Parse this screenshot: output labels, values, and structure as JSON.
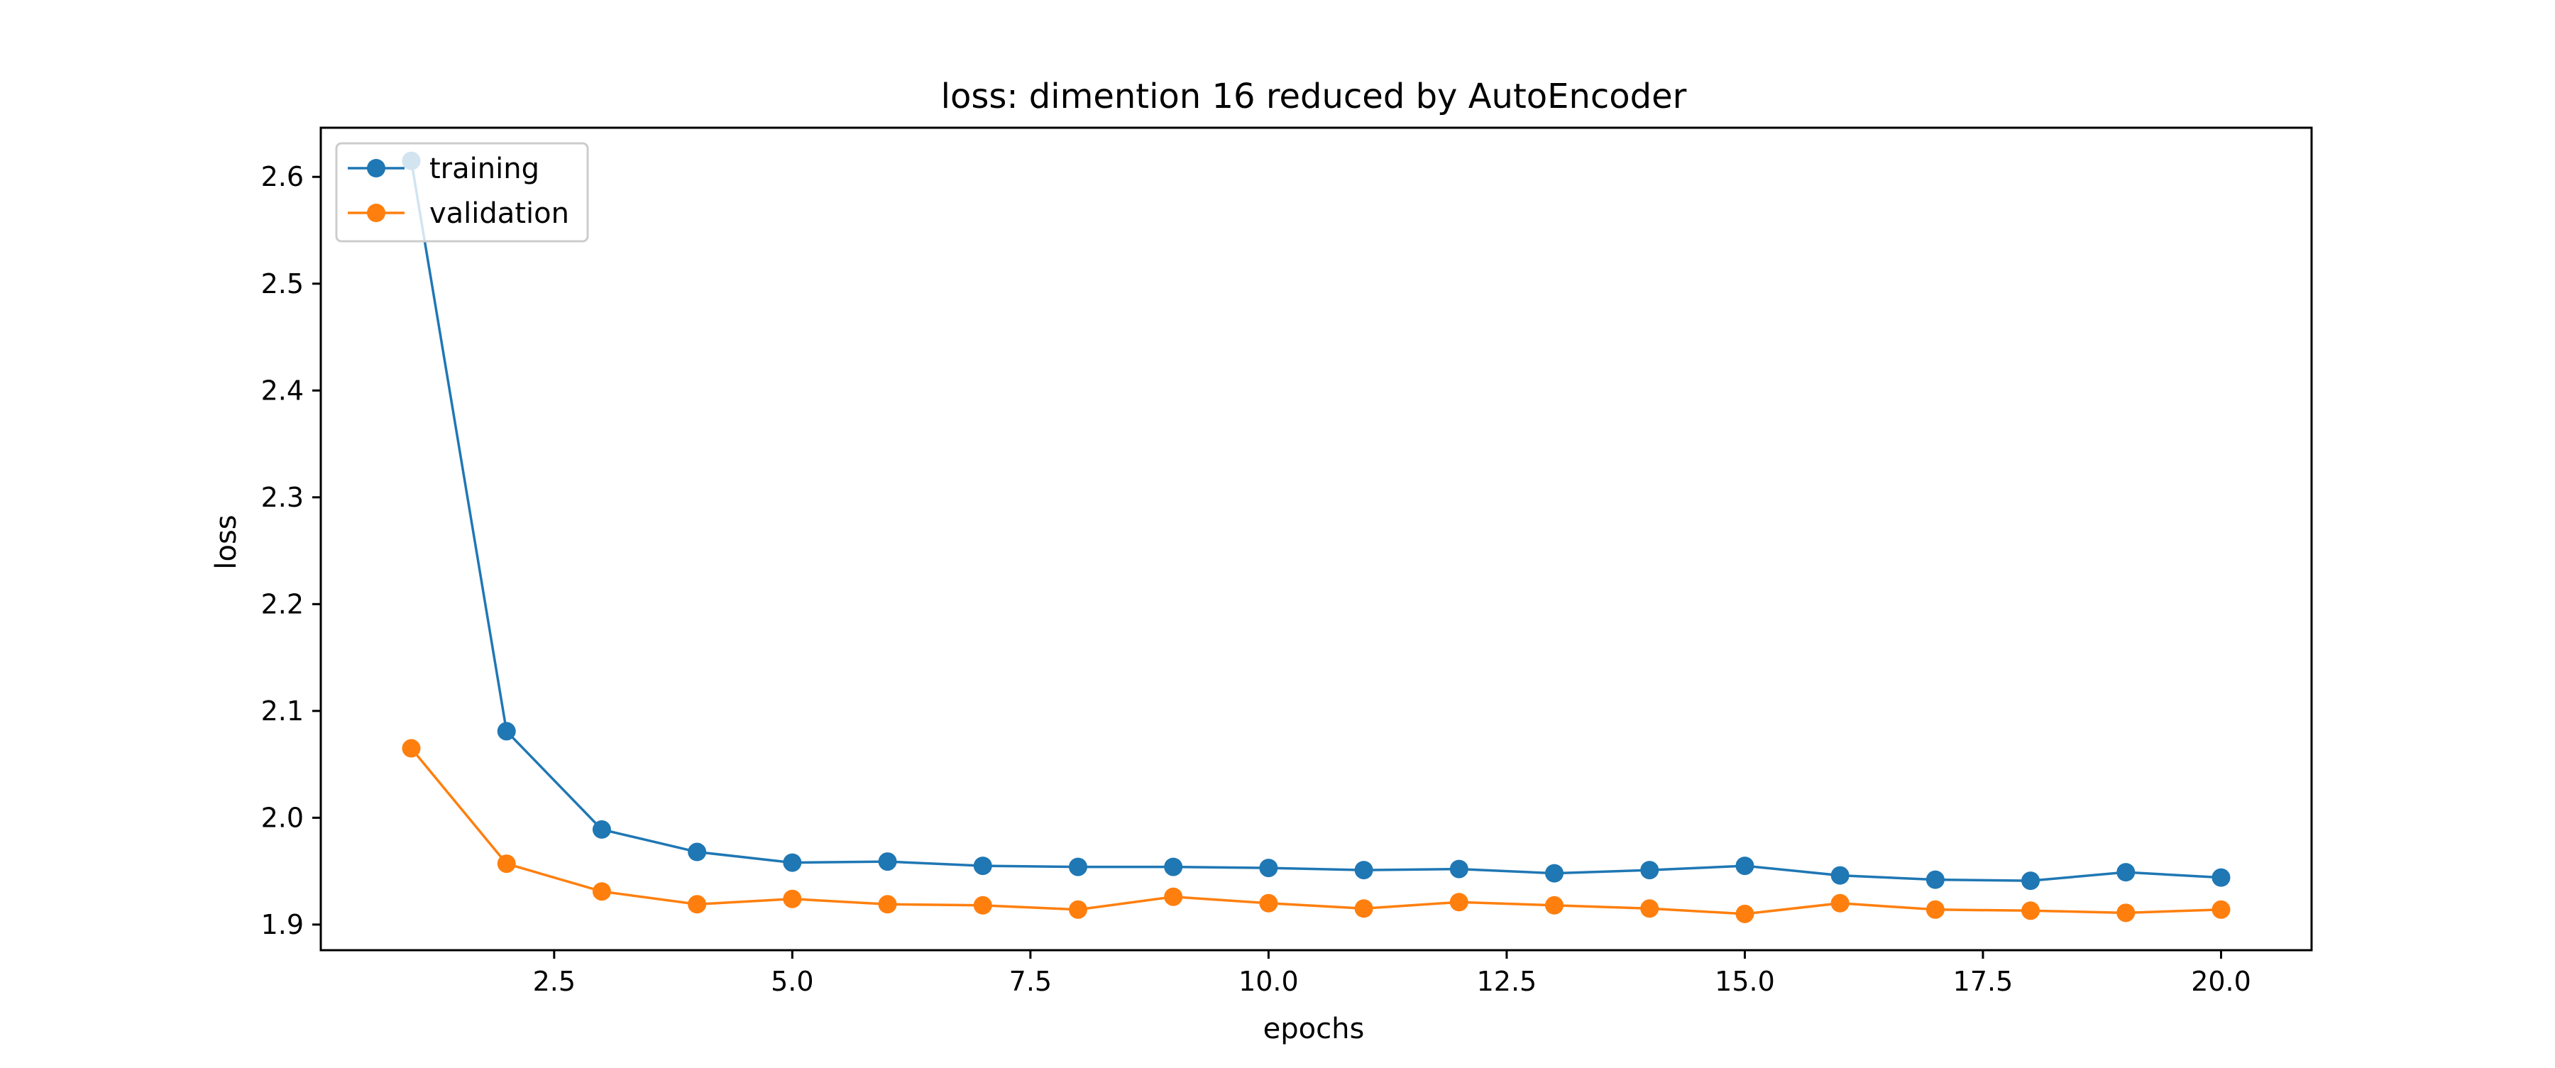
{
  "chart_data": {
    "type": "line",
    "title": "loss: dimention 16 reduced by AutoEncoder",
    "xlabel": "epochs",
    "ylabel": "loss",
    "x": [
      1,
      2,
      3,
      4,
      5,
      6,
      7,
      8,
      9,
      10,
      11,
      12,
      13,
      14,
      15,
      16,
      17,
      18,
      19,
      20
    ],
    "xlim": [
      0.05,
      20.95
    ],
    "ylim": [
      1.876,
      2.646
    ],
    "xticks": [
      2.5,
      5.0,
      7.5,
      10.0,
      12.5,
      15.0,
      17.5,
      20.0
    ],
    "xtick_labels": [
      "2.5",
      "5.0",
      "7.5",
      "10.0",
      "12.5",
      "15.0",
      "17.5",
      "20.0"
    ],
    "yticks": [
      1.9,
      2.0,
      2.1,
      2.2,
      2.3,
      2.4,
      2.5,
      2.6
    ],
    "ytick_labels": [
      "1.9",
      "2.0",
      "2.1",
      "2.2",
      "2.3",
      "2.4",
      "2.5",
      "2.6"
    ],
    "grid": false,
    "legend_position": "top-left",
    "series": [
      {
        "name": "training",
        "color": "#1f77b4",
        "values": [
          2.615,
          2.081,
          1.989,
          1.968,
          1.958,
          1.959,
          1.955,
          1.954,
          1.954,
          1.953,
          1.951,
          1.952,
          1.948,
          1.951,
          1.955,
          1.946,
          1.942,
          1.941,
          1.949,
          1.944
        ]
      },
      {
        "name": "validation",
        "color": "#ff7f0e",
        "values": [
          2.065,
          1.957,
          1.931,
          1.919,
          1.924,
          1.919,
          1.918,
          1.914,
          1.926,
          1.92,
          1.915,
          1.921,
          1.918,
          1.915,
          1.91,
          1.92,
          1.914,
          1.913,
          1.911,
          1.914
        ]
      }
    ]
  }
}
